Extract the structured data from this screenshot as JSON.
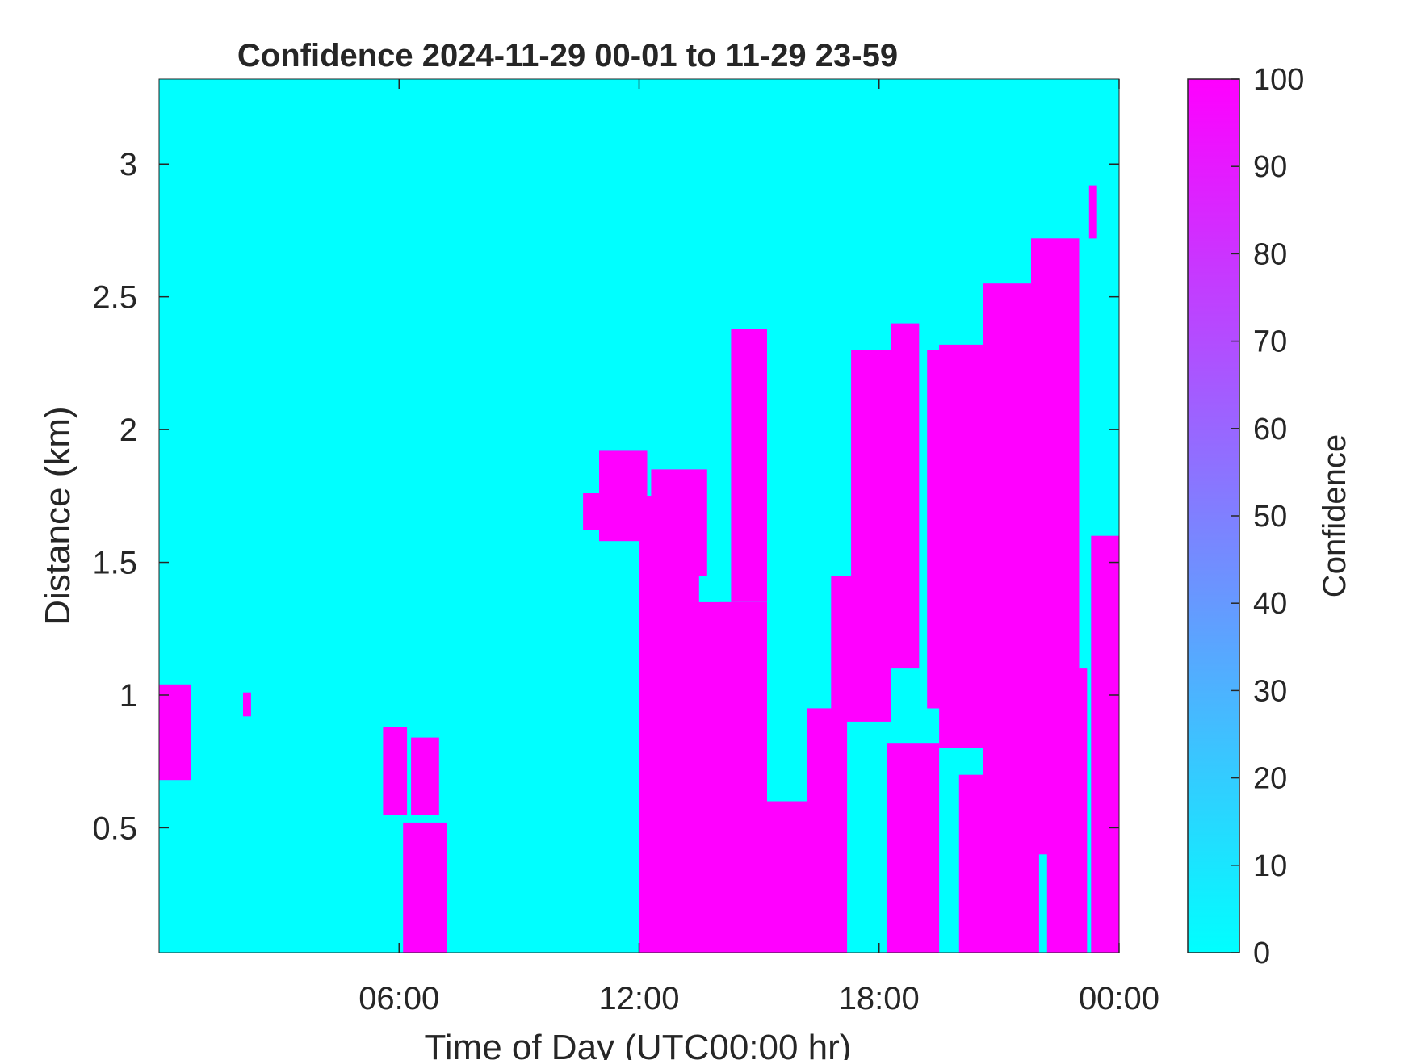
{
  "chart_data": {
    "type": "heatmap",
    "title": "Confidence 2024-11-29 00-01 to 11-29 23-59",
    "xlabel": "Time of Day (UTC00:00 hr)",
    "ylabel": "Distance (km)",
    "xlim": [
      0,
      24
    ],
    "ylim": [
      0.03,
      3.32
    ],
    "x_ticks": [
      {
        "value": 6,
        "label": "06:00"
      },
      {
        "value": 12,
        "label": "12:00"
      },
      {
        "value": 18,
        "label": "18:00"
      },
      {
        "value": 24,
        "label": "00:00"
      }
    ],
    "y_ticks": [
      {
        "value": 0.5,
        "label": "0.5"
      },
      {
        "value": 1,
        "label": "1"
      },
      {
        "value": 1.5,
        "label": "1.5"
      },
      {
        "value": 2,
        "label": "2"
      },
      {
        "value": 2.5,
        "label": "2.5"
      },
      {
        "value": 3,
        "label": "3"
      }
    ],
    "colorbar": {
      "label": "Confidence",
      "range": [
        0,
        100
      ],
      "ticks": [
        "0",
        "10",
        "20",
        "30",
        "40",
        "50",
        "60",
        "70",
        "80",
        "90",
        "100"
      ],
      "colormap": "cool",
      "low_color": "#00ffff",
      "high_color": "#ff00ff"
    },
    "grid": false,
    "cell_values": "binary: 0 (background) or 100 (marked)",
    "regions_100": [
      {
        "t": [
          0.0,
          0.8
        ],
        "d": [
          0.68,
          1.04
        ]
      },
      {
        "t": [
          2.1,
          2.3
        ],
        "d": [
          0.92,
          1.01
        ]
      },
      {
        "t": [
          5.6,
          6.2
        ],
        "d": [
          0.55,
          0.88
        ]
      },
      {
        "t": [
          6.3,
          7.0
        ],
        "d": [
          0.55,
          0.84
        ]
      },
      {
        "t": [
          6.1,
          7.2
        ],
        "d": [
          0.03,
          0.52
        ]
      },
      {
        "t": [
          10.6,
          11.1
        ],
        "d": [
          1.62,
          1.76
        ]
      },
      {
        "t": [
          11.0,
          12.2
        ],
        "d": [
          1.58,
          1.92
        ]
      },
      {
        "t": [
          12.0,
          13.5
        ],
        "d": [
          0.03,
          1.75
        ]
      },
      {
        "t": [
          12.3,
          13.7
        ],
        "d": [
          1.45,
          1.85
        ]
      },
      {
        "t": [
          13.0,
          14.4
        ],
        "d": [
          0.03,
          1.35
        ]
      },
      {
        "t": [
          14.0,
          15.2
        ],
        "d": [
          0.03,
          1.35
        ]
      },
      {
        "t": [
          14.3,
          15.2
        ],
        "d": [
          1.35,
          2.38
        ]
      },
      {
        "t": [
          15.2,
          16.2
        ],
        "d": [
          0.03,
          0.6
        ]
      },
      {
        "t": [
          16.2,
          17.2
        ],
        "d": [
          0.03,
          0.95
        ]
      },
      {
        "t": [
          16.8,
          18.3
        ],
        "d": [
          0.9,
          1.45
        ]
      },
      {
        "t": [
          17.3,
          18.3
        ],
        "d": [
          1.4,
          2.3
        ]
      },
      {
        "t": [
          18.3,
          19.0
        ],
        "d": [
          1.1,
          2.4
        ]
      },
      {
        "t": [
          18.2,
          19.5
        ],
        "d": [
          0.03,
          0.82
        ]
      },
      {
        "t": [
          19.2,
          20.6
        ],
        "d": [
          0.95,
          2.3
        ]
      },
      {
        "t": [
          19.5,
          21.0
        ],
        "d": [
          0.8,
          2.32
        ]
      },
      {
        "t": [
          20.6,
          22.0
        ],
        "d": [
          0.5,
          2.55
        ]
      },
      {
        "t": [
          21.8,
          23.0
        ],
        "d": [
          0.4,
          2.72
        ]
      },
      {
        "t": [
          20.0,
          22.0
        ],
        "d": [
          0.03,
          0.7
        ]
      },
      {
        "t": [
          22.2,
          23.2
        ],
        "d": [
          0.03,
          1.1
        ]
      },
      {
        "t": [
          23.3,
          24.0
        ],
        "d": [
          0.03,
          1.6
        ]
      },
      {
        "t": [
          23.25,
          23.45
        ],
        "d": [
          2.72,
          2.92
        ]
      }
    ]
  }
}
